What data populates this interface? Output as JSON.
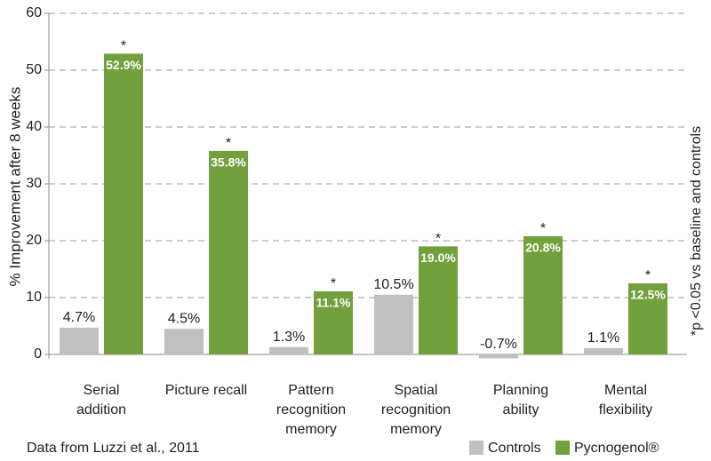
{
  "chart_data": {
    "type": "bar",
    "y_label": "% Improvement after 8 weeks",
    "categories": [
      "Serial addition",
      "Picture recall",
      "Pattern recognition memory",
      "Spatial recognition memory",
      "Planning ability",
      "Mental flexibility"
    ],
    "series": [
      {
        "name": "Controls",
        "color": "#c0c0c0",
        "values": [
          4.7,
          4.5,
          1.3,
          10.5,
          -0.7,
          1.1
        ],
        "value_labels": [
          "4.7%",
          "4.5%",
          "1.3%",
          "10.5%",
          "-0.7%",
          "1.1%"
        ]
      },
      {
        "name": "Pycnogenol®",
        "color": "#72a03c",
        "values": [
          52.9,
          35.8,
          11.1,
          19.0,
          20.8,
          12.5
        ],
        "value_labels": [
          "52.9%",
          "35.8%",
          "11.1%",
          "19.0%",
          "20.8%",
          "12.5%"
        ],
        "marker": "*"
      }
    ],
    "ylim": [
      0,
      60
    ],
    "yticks": [
      0,
      10,
      20,
      30,
      40,
      50,
      60
    ],
    "grid": true,
    "side_note": "*p <0.05 vs baseline and controls",
    "source": "Data from Luzzi et al., 2011"
  }
}
